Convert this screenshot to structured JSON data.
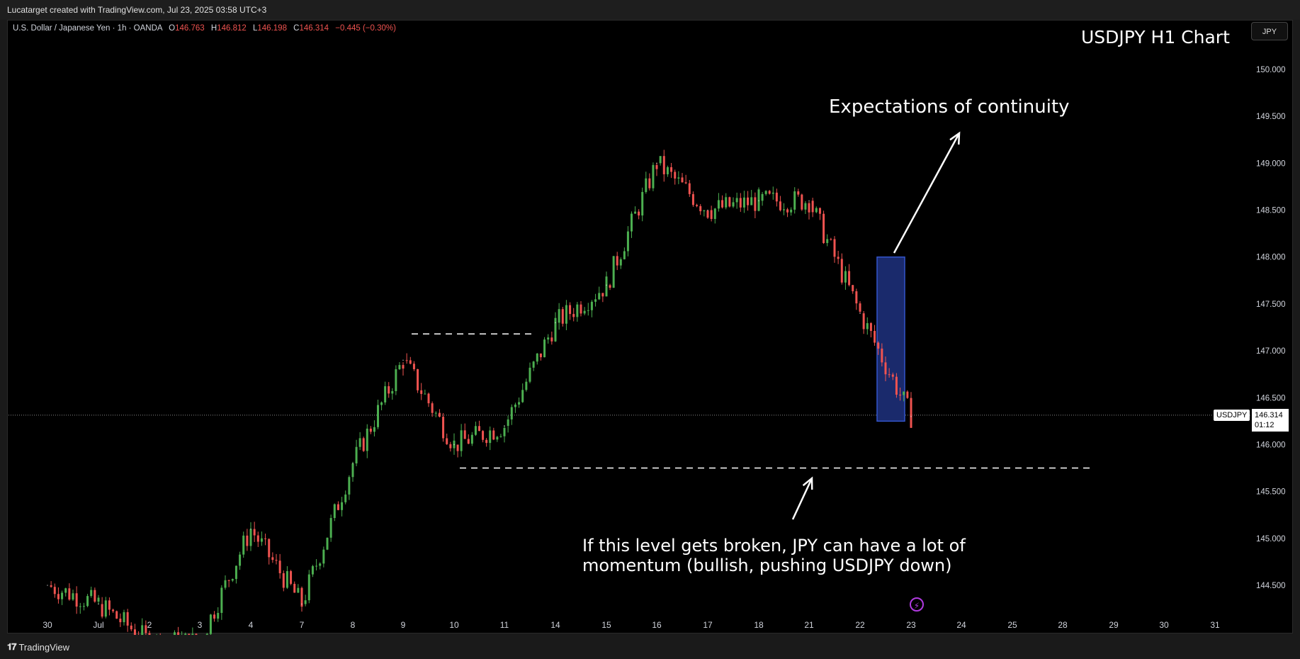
{
  "header": {
    "caption": "Lucatarget created with TradingView.com, Jul 23, 2025 03:58 UTC+3"
  },
  "legend": {
    "symbol": "U.S. Dollar / Japanese Yen · 1h · OANDA",
    "open_label": "O",
    "open": "146.763",
    "high_label": "H",
    "high": "146.812",
    "low_label": "L",
    "low": "146.198",
    "close_label": "C",
    "close": "146.314",
    "change": "−0.445 (−0.30%)"
  },
  "currency_button": "JPY",
  "price_tag": {
    "symbol": "USDJPY",
    "price": "146.314",
    "countdown": "01:12"
  },
  "footer": {
    "brand": "TradingView"
  },
  "colors": {
    "up": "#26a69a",
    "up_candle": "#4caf50",
    "down": "#ef5350",
    "box": "#1a2a6c",
    "box_border": "#3355cc",
    "bolt": "#b03ae0"
  },
  "icons": {
    "bolt": "lightning-bolt-icon",
    "logo": "tradingview-logo-icon"
  },
  "chart_data": {
    "type": "line",
    "title": "USDJPY H1 Chart",
    "xlabel": "",
    "ylabel": "",
    "x_ticks": [
      "30",
      "Jul",
      "2",
      "3",
      "4",
      "7",
      "8",
      "9",
      "10",
      "11",
      "14",
      "15",
      "16",
      "17",
      "18",
      "21",
      "22",
      "23",
      "24",
      "25",
      "28",
      "29",
      "30",
      "31"
    ],
    "y_ticks": [
      "150.000",
      "149.500",
      "149.000",
      "148.500",
      "148.000",
      "147.500",
      "147.000",
      "146.500",
      "146.000",
      "145.500",
      "145.000",
      "144.500"
    ],
    "ylim": [
      144.17,
      150.35
    ],
    "grid": false,
    "series": [
      {
        "x": [
          "30",
          "Jul",
          "2",
          "3",
          "4",
          "7",
          "8",
          "9",
          "10",
          "11",
          "14",
          "15",
          "16",
          "17",
          "18",
          "21",
          "22",
          "23"
        ],
        "values": [
          144.5,
          144.3,
          143.9,
          143.9,
          145.1,
          144.3,
          145.8,
          146.9,
          146.0,
          146.2,
          147.3,
          147.7,
          149.0,
          148.5,
          148.6,
          148.6,
          147.4,
          146.3
        ]
      }
    ],
    "levels": [
      {
        "value": 147.18,
        "from": "9",
        "to": "11"
      },
      {
        "value": 145.75,
        "from": "10",
        "to": "28"
      }
    ],
    "highlight_box": {
      "x_from": "22",
      "x_to": "22",
      "y_from": 146.25,
      "y_to": 148.0
    },
    "annotations": [
      "Expectations of continuity",
      "If this level gets broken, JPY can have a lot of momentum (bullish, pushing USDJPY down)"
    ]
  }
}
